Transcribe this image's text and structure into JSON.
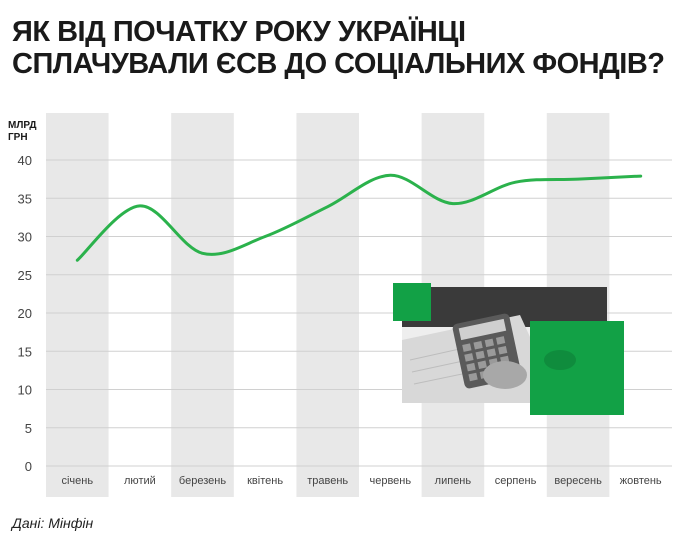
{
  "title": {
    "line1": "ЯК ВІД ПОЧАТКУ РОКУ УКРАЇНЦІ",
    "line2": "СПЛАЧУВАЛИ ЄСВ ДО СОЦІАЛЬНИХ ФОНДІВ?"
  },
  "unit": {
    "line1": "МЛРД",
    "line2": "ГРН"
  },
  "source": "Дані: Мінфін",
  "colors": {
    "line": "#2bb24c",
    "band": "#e8e8e8",
    "grid": "#d0d0d0",
    "accent_green": "#12a146",
    "photo_dark": "#3a3a3a"
  },
  "illustration": {
    "icon": "calculator-photo-icon"
  },
  "chart_data": {
    "type": "line",
    "categories": [
      "січень",
      "лютий",
      "березень",
      "квітень",
      "травень",
      "червень",
      "липень",
      "серпень",
      "вересень",
      "жовтень"
    ],
    "values": [
      26.9,
      34.0,
      27.8,
      30.0,
      33.9,
      38.0,
      34.3,
      37.1,
      37.5,
      37.9
    ],
    "title": "ЯК ВІД ПОЧАТКУ РОКУ УКРАЇНЦІ СПЛАЧУВАЛИ ЄСВ ДО СОЦІАЛЬНИХ ФОНДІВ?",
    "xlabel": "",
    "ylabel": "МЛРД ГРН",
    "ylim": [
      0,
      40
    ],
    "yticks": [
      0,
      5,
      10,
      15,
      20,
      25,
      30,
      35,
      40
    ],
    "grid": true,
    "legend": "none",
    "smooth": true
  }
}
